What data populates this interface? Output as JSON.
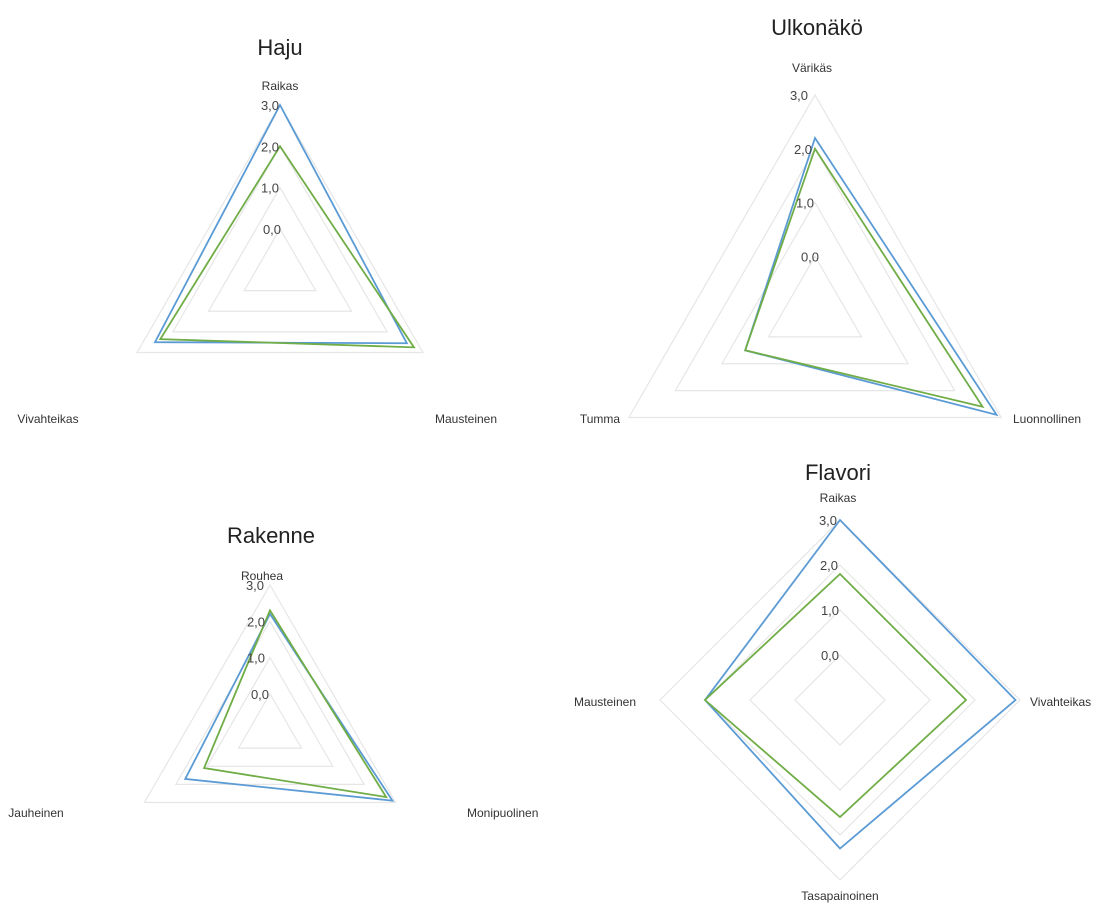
{
  "colors": {
    "series_a": "#5b9bd5",
    "series_b": "#70ad47",
    "grid": "#e6e6e6"
  },
  "chart_data": [
    {
      "type": "radar",
      "title": "Haju",
      "axes": [
        "Raikas",
        "Mausteinen",
        "Vivahteikas"
      ],
      "ticks": [
        "0,0",
        "1,0",
        "2,0",
        "3,0"
      ],
      "range": [
        0,
        3
      ],
      "series": [
        {
          "values": [
            3.0,
            2.55,
            2.5
          ]
        },
        {
          "values": [
            2.0,
            2.75,
            2.35
          ]
        }
      ]
    },
    {
      "type": "radar",
      "title": "Ulkonäkö",
      "axes": [
        "Värikäs",
        "Luonnollinen",
        "Tumma"
      ],
      "ticks": [
        "0,0",
        "1,0",
        "2,0",
        "3,0"
      ],
      "range": [
        0,
        3
      ],
      "series": [
        {
          "values": [
            2.2,
            2.9,
            0.5
          ]
        },
        {
          "values": [
            2.0,
            2.6,
            0.5
          ]
        }
      ]
    },
    {
      "type": "radar",
      "title": "Rakenne",
      "axes": [
        "Rouhea",
        "Monipuolinen",
        "Jauheinen"
      ],
      "ticks": [
        "0,0",
        "1,0",
        "2,0",
        "3,0"
      ],
      "range": [
        0,
        3
      ],
      "series": [
        {
          "values": [
            2.2,
            2.9,
            1.7
          ]
        },
        {
          "values": [
            2.3,
            2.7,
            1.1
          ]
        }
      ]
    },
    {
      "type": "radar",
      "title": "Flavori",
      "axes": [
        "Raikas",
        "Vivahteikas",
        "Tasapainoinen",
        "Mausteinen"
      ],
      "ticks": [
        "0,0",
        "1,0",
        "2,0",
        "3,0"
      ],
      "range": [
        0,
        3
      ],
      "series": [
        {
          "values": [
            3.0,
            2.9,
            2.3,
            2.0
          ]
        },
        {
          "values": [
            1.8,
            1.8,
            1.6,
            2.0
          ]
        }
      ]
    }
  ]
}
